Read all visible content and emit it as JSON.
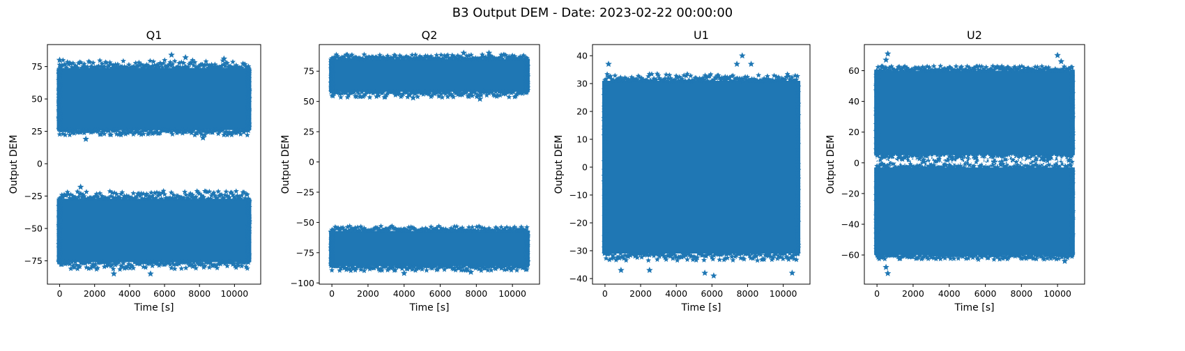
{
  "suptitle": "B3 Output DEM - Date: 2023-02-22 00:00:00",
  "marker_color": "#1f77b4",
  "marker_icon": "star-marker",
  "chart_data": [
    {
      "type": "scatter",
      "title": "Q1",
      "xlabel": "Time [s]",
      "ylabel": "Output DEM",
      "xlim": [
        -700,
        11500
      ],
      "ylim": [
        -93,
        92
      ],
      "xticks": [
        0,
        2000,
        4000,
        6000,
        8000,
        10000
      ],
      "yticks": [
        -75,
        -50,
        -25,
        0,
        25,
        50,
        75
      ],
      "grid": false,
      "x_range": [
        0,
        10800
      ],
      "bands": [
        {
          "core": [
            26,
            74
          ],
          "outer": [
            22,
            80
          ]
        },
        {
          "core": [
            -76,
            -27
          ],
          "outer": [
            -82,
            -21
          ]
        }
      ],
      "outliers": [
        [
          0,
          80
        ],
        [
          1500,
          19
        ],
        [
          3100,
          -85
        ],
        [
          6400,
          84
        ],
        [
          7200,
          82
        ],
        [
          8200,
          20
        ],
        [
          9400,
          81
        ],
        [
          5200,
          -85
        ],
        [
          1200,
          -18
        ]
      ]
    },
    {
      "type": "scatter",
      "title": "Q2",
      "xlabel": "Time [s]",
      "ylabel": "Output DEM",
      "xlim": [
        -700,
        11500
      ],
      "ylim": [
        -101,
        97
      ],
      "xticks": [
        0,
        2000,
        4000,
        6000,
        8000,
        10000
      ],
      "yticks": [
        -100,
        -75,
        -50,
        -25,
        0,
        25,
        50,
        75
      ],
      "grid": false,
      "x_range": [
        0,
        10800
      ],
      "bands": [
        {
          "core": [
            58,
            85
          ],
          "outer": [
            53,
            89
          ]
        },
        {
          "core": [
            -86,
            -57
          ],
          "outer": [
            -90,
            -53
          ]
        }
      ],
      "outliers": [
        [
          4000,
          -92
        ],
        [
          7300,
          90
        ],
        [
          8700,
          90
        ],
        [
          8200,
          52
        ],
        [
          7700,
          -91
        ],
        [
          4500,
          53
        ]
      ]
    },
    {
      "type": "scatter",
      "title": "U1",
      "xlabel": "Time [s]",
      "ylabel": "Output DEM",
      "xlim": [
        -700,
        11500
      ],
      "ylim": [
        -42,
        44
      ],
      "xticks": [
        0,
        2000,
        4000,
        6000,
        8000,
        10000
      ],
      "yticks": [
        -40,
        -30,
        -20,
        -10,
        0,
        10,
        20,
        30,
        40
      ],
      "grid": false,
      "x_range": [
        0,
        10800
      ],
      "bands": [
        {
          "core": [
            -31,
            31
          ],
          "outer": [
            -33.5,
            33.5
          ]
        }
      ],
      "outliers": [
        [
          7700,
          40
        ],
        [
          7400,
          37
        ],
        [
          8200,
          37
        ],
        [
          10500,
          -38
        ],
        [
          6100,
          -39
        ],
        [
          5600,
          -38
        ],
        [
          900,
          -37
        ],
        [
          200,
          37
        ],
        [
          2500,
          -37
        ]
      ]
    },
    {
      "type": "scatter",
      "title": "U2",
      "xlabel": "Time [s]",
      "ylabel": "Output DEM",
      "xlim": [
        -700,
        11500
      ],
      "ylim": [
        -79,
        77
      ],
      "xticks": [
        0,
        2000,
        4000,
        6000,
        8000,
        10000
      ],
      "yticks": [
        -60,
        -40,
        -20,
        0,
        20,
        40,
        60
      ],
      "grid": false,
      "x_range": [
        0,
        10800
      ],
      "bands": [
        {
          "core": [
            5,
            60
          ],
          "outer": [
            1,
            63
          ]
        },
        {
          "core": [
            -60,
            -3
          ],
          "outer": [
            -63,
            4
          ]
        }
      ],
      "outliers": [
        [
          600,
          71
        ],
        [
          500,
          67
        ],
        [
          600,
          -72
        ],
        [
          500,
          -68
        ],
        [
          10000,
          70
        ],
        [
          10200,
          66
        ],
        [
          300,
          62
        ],
        [
          10400,
          -64
        ]
      ]
    }
  ]
}
